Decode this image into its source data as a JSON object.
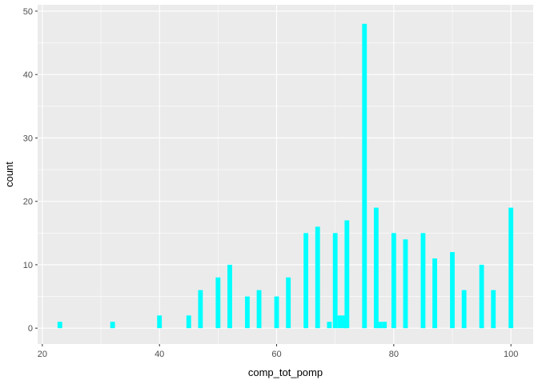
{
  "chart_data": {
    "type": "bar",
    "title": "",
    "xlabel": "comp_tot_pomp",
    "ylabel": "count",
    "xlim": [
      19.2,
      103.8
    ],
    "ylim": [
      -2.5,
      51
    ],
    "x_ticks": [
      20,
      40,
      60,
      80,
      100
    ],
    "y_ticks": [
      0,
      10,
      20,
      30,
      40,
      50
    ],
    "x_minor_ticks": [
      30,
      50,
      70,
      90
    ],
    "y_minor_ticks": [
      5,
      15,
      25,
      35,
      45
    ],
    "bin_width": 0.8,
    "grid": true,
    "bar_color": "#00FFFF",
    "panel_color": "#EBEBEB",
    "grid_color": "#FFFFFF",
    "tick_color": "#333333",
    "bars": [
      {
        "x": 23,
        "count": 1
      },
      {
        "x": 32,
        "count": 1
      },
      {
        "x": 40,
        "count": 2
      },
      {
        "x": 45,
        "count": 2
      },
      {
        "x": 47,
        "count": 6
      },
      {
        "x": 50,
        "count": 8
      },
      {
        "x": 52,
        "count": 10
      },
      {
        "x": 55,
        "count": 5
      },
      {
        "x": 57,
        "count": 6
      },
      {
        "x": 60,
        "count": 5
      },
      {
        "x": 62,
        "count": 8
      },
      {
        "x": 65,
        "count": 15
      },
      {
        "x": 67,
        "count": 16
      },
      {
        "x": 69,
        "count": 1
      },
      {
        "x": 70,
        "count": 15
      },
      {
        "x": 70.8,
        "count": 2
      },
      {
        "x": 71.6,
        "count": 2
      },
      {
        "x": 72,
        "count": 17
      },
      {
        "x": 75,
        "count": 48
      },
      {
        "x": 77,
        "count": 19
      },
      {
        "x": 77.6,
        "count": 1
      },
      {
        "x": 78.4,
        "count": 1
      },
      {
        "x": 80,
        "count": 15
      },
      {
        "x": 82,
        "count": 14
      },
      {
        "x": 85,
        "count": 15
      },
      {
        "x": 87,
        "count": 11
      },
      {
        "x": 90,
        "count": 12
      },
      {
        "x": 92,
        "count": 6
      },
      {
        "x": 95,
        "count": 10
      },
      {
        "x": 97,
        "count": 6
      },
      {
        "x": 100,
        "count": 19
      }
    ]
  }
}
